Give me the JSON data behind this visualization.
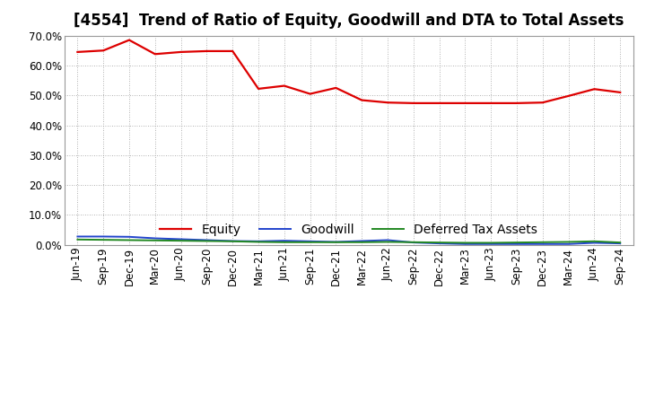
{
  "title": "[4554]  Trend of Ratio of Equity, Goodwill and DTA to Total Assets",
  "x_labels": [
    "Jun-19",
    "Sep-19",
    "Dec-19",
    "Mar-20",
    "Jun-20",
    "Sep-20",
    "Dec-20",
    "Mar-21",
    "Jun-21",
    "Sep-21",
    "Dec-21",
    "Mar-22",
    "Jun-22",
    "Sep-22",
    "Dec-22",
    "Mar-23",
    "Jun-23",
    "Sep-23",
    "Dec-23",
    "Mar-24",
    "Jun-24",
    "Sep-24"
  ],
  "equity": [
    0.645,
    0.65,
    0.685,
    0.638,
    0.645,
    0.648,
    0.648,
    0.522,
    0.532,
    0.505,
    0.525,
    0.484,
    0.476,
    0.474,
    0.474,
    0.474,
    0.474,
    0.474,
    0.476,
    0.498,
    0.521,
    0.51
  ],
  "goodwill": [
    0.028,
    0.028,
    0.027,
    0.022,
    0.019,
    0.016,
    0.013,
    0.012,
    0.014,
    0.012,
    0.01,
    0.013,
    0.016,
    0.008,
    0.005,
    0.003,
    0.003,
    0.003,
    0.003,
    0.003,
    0.007,
    0.005
  ],
  "dta": [
    0.018,
    0.017,
    0.016,
    0.015,
    0.014,
    0.013,
    0.012,
    0.01,
    0.009,
    0.009,
    0.009,
    0.009,
    0.01,
    0.009,
    0.008,
    0.007,
    0.007,
    0.008,
    0.009,
    0.01,
    0.012,
    0.008
  ],
  "equity_color": "#dd0000",
  "goodwill_color": "#2244cc",
  "dta_color": "#228822",
  "bg_color": "#ffffff",
  "plot_bg_color": "#ffffff",
  "grid_color": "#999999",
  "ylim": [
    0.0,
    0.7
  ],
  "yticks": [
    0.0,
    0.1,
    0.2,
    0.3,
    0.4,
    0.5,
    0.6,
    0.7
  ],
  "legend_labels": [
    "Equity",
    "Goodwill",
    "Deferred Tax Assets"
  ],
  "title_fontsize": 12,
  "tick_fontsize": 8.5,
  "legend_fontsize": 10
}
